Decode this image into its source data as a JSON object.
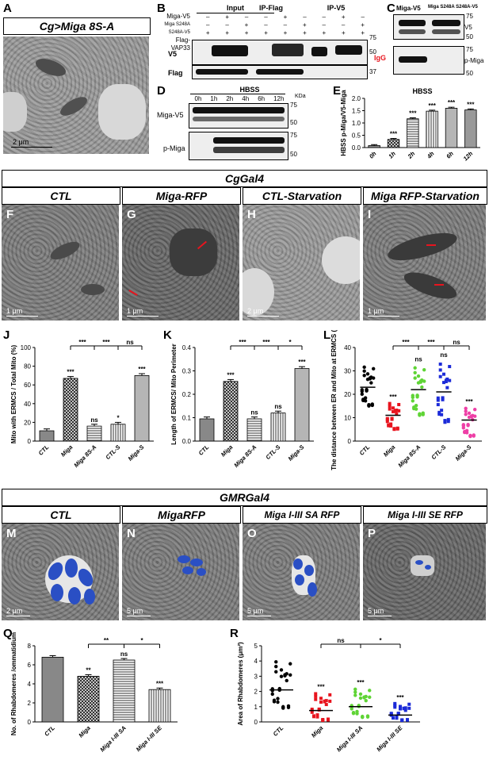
{
  "panels": {
    "A": {
      "label": "A",
      "title": "Cg>Miga 8S-A",
      "scalebar": "2 μm"
    },
    "B": {
      "label": "B",
      "groups": [
        "Input",
        "IP-Flag",
        "IP-V5"
      ],
      "row_labels": [
        "Miga-V5",
        "Miga S248A S248A-V5",
        "Flag-VAP33"
      ],
      "signs": [
        [
          "–",
          "+",
          "–"
        ],
        [
          "–",
          "–",
          "+"
        ],
        [
          "+",
          "+",
          "+"
        ]
      ],
      "blot_labels": [
        "V5",
        "Flag"
      ],
      "mw": [
        "75",
        "50",
        "37"
      ],
      "igg": "IgG"
    },
    "C": {
      "label": "C",
      "cols": [
        "Miga-V5",
        "Miga S248A S248A-V5"
      ],
      "blot_labels": [
        "V5",
        "p-Miga"
      ],
      "mw_top": [
        "75",
        "50"
      ],
      "mw_bottom": [
        "75",
        "50"
      ]
    },
    "D": {
      "label": "D",
      "condition": "HBSS",
      "unit": "KDa",
      "times": [
        "0h",
        "1h",
        "2h",
        "4h",
        "6h",
        "12h"
      ],
      "blot_labels": [
        "Miga-V5",
        "p-Miga"
      ],
      "mw_top": [
        "75",
        "50"
      ],
      "mw_bottom": [
        "75",
        "50"
      ]
    },
    "F": {
      "label": "F",
      "scalebar": "1 μm"
    },
    "G": {
      "label": "G",
      "scalebar": "1 μm"
    },
    "H": {
      "label": "H",
      "scalebar": "2 μm"
    },
    "I": {
      "label": "I",
      "scalebar": "1 μm"
    },
    "M": {
      "label": "M",
      "scalebar": "2 μm"
    },
    "N": {
      "label": "N",
      "scalebar": "5 μm"
    },
    "O": {
      "label": "O",
      "scalebar": "5 μm"
    },
    "P": {
      "label": "P",
      "scalebar": "5 μm"
    }
  },
  "section2": {
    "header": "CgGal4",
    "cols": [
      "CTL",
      "Miga-RFP",
      "CTL-Starvation",
      "Miga RFP-Starvation"
    ]
  },
  "section3": {
    "header": "GMRGal4",
    "cols": [
      "CTL",
      "MigaRFP",
      "Miga I-III SA RFP",
      "Miga I-III SE RFP"
    ]
  },
  "chart_data": [
    {
      "panel": "E",
      "type": "bar",
      "title": "HBSS",
      "categories": [
        "0h",
        "1h",
        "2h",
        "4h",
        "6h",
        "12h"
      ],
      "values": [
        0.08,
        0.33,
        1.17,
        1.48,
        1.6,
        1.53
      ],
      "ylabel": "HBSS p-Miga/V5-Miga",
      "ylim": [
        0,
        2.0
      ],
      "yticks": [
        "0.0",
        "0.5",
        "1.0",
        "1.5",
        "2.0"
      ],
      "sig": [
        "",
        "***",
        "***",
        "***",
        "***",
        "***"
      ]
    },
    {
      "panel": "J",
      "type": "bar",
      "categories": [
        "CTL",
        "Miga",
        "Miga 8S-A",
        "CTL-S",
        "Miga-S"
      ],
      "values": [
        11,
        67,
        16,
        18,
        70
      ],
      "ylabel": "Mito with ERMCS / Total Mito (%)",
      "ylim": [
        0,
        100
      ],
      "yticks": [
        "0",
        "20",
        "40",
        "60",
        "80",
        "100"
      ],
      "sig": [
        "",
        "***",
        "ns",
        "*",
        "***"
      ],
      "brackets": [
        "***",
        "***",
        "ns"
      ]
    },
    {
      "panel": "K",
      "type": "bar",
      "categories": [
        "CTL",
        "Miga",
        "Miga 8S-A",
        "CTL-S",
        "Miga-S"
      ],
      "values": [
        0.095,
        0.255,
        0.095,
        0.12,
        0.31
      ],
      "ylabel": "Length of ERMCS/ Mito Perimeter",
      "ylim": [
        0,
        0.4
      ],
      "yticks": [
        "0.0",
        "0.1",
        "0.2",
        "0.3",
        "0.4"
      ],
      "sig": [
        "",
        "***",
        "ns",
        "ns",
        "***"
      ],
      "brackets": [
        "***",
        "***",
        "*"
      ]
    },
    {
      "panel": "L",
      "type": "scatter",
      "categories": [
        "CTL",
        "Miga",
        "Miga 8S-A",
        "CTL-S",
        "Miga-S"
      ],
      "means": [
        23,
        11,
        22,
        21,
        9
      ],
      "spread": [
        [
          15,
          33
        ],
        [
          5,
          17
        ],
        [
          11,
          33
        ],
        [
          8,
          35
        ],
        [
          2,
          15
        ]
      ],
      "ylabel": "The distance between ER and Mito at ERMCS (nm)",
      "ylim": [
        0,
        40
      ],
      "yticks": [
        "0",
        "10",
        "20",
        "30",
        "40"
      ],
      "colors": [
        "#000000",
        "#e8141e",
        "#5fd435",
        "#1c2bd8",
        "#ee3fa6"
      ],
      "sig": [
        "",
        "***",
        "ns",
        "ns",
        "***"
      ],
      "brackets": [
        "***",
        "***",
        "ns"
      ]
    },
    {
      "panel": "Q",
      "type": "bar",
      "categories": [
        "CTL",
        "Miga",
        "Miga I-III SA",
        "Miga I-III SE"
      ],
      "values": [
        6.8,
        4.8,
        6.5,
        3.4
      ],
      "ylabel": "No. of Rhabdomeres /ommatidium",
      "ylim": [
        0,
        8
      ],
      "yticks": [
        "0",
        "2",
        "4",
        "6",
        "8"
      ],
      "sig": [
        "",
        "**",
        "ns",
        "***"
      ],
      "brackets": [
        "**",
        "*"
      ]
    },
    {
      "panel": "R",
      "type": "scatter",
      "categories": [
        "CTL",
        "Miga",
        "Miga I-III SA",
        "Miga I-III SE"
      ],
      "means": [
        2.1,
        0.75,
        1.0,
        0.45
      ],
      "spread": [
        [
          0.9,
          4.2
        ],
        [
          0.1,
          2.0
        ],
        [
          0.3,
          2.3
        ],
        [
          0.1,
          1.3
        ]
      ],
      "ylabel": "Area of Rhabdomeres (μm²)",
      "ylim": [
        0,
        5
      ],
      "yticks": [
        "0",
        "1",
        "2",
        "3",
        "4",
        "5"
      ],
      "colors": [
        "#000000",
        "#e8141e",
        "#5fd435",
        "#1c2bd8"
      ],
      "sig": [
        "",
        "***",
        "***",
        "***"
      ],
      "brackets": [
        "ns",
        "*"
      ]
    }
  ]
}
